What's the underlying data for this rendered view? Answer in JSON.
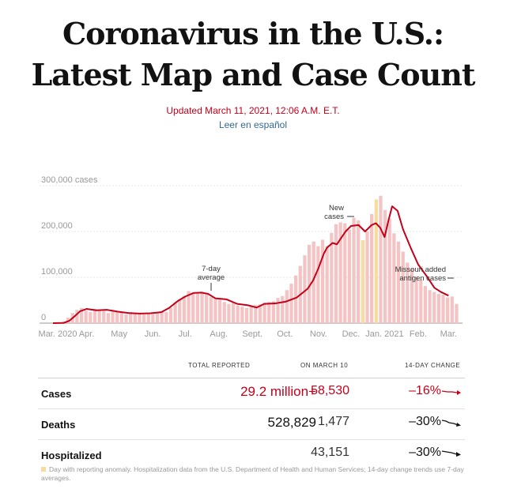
{
  "header": {
    "title_line1": "Coronavirus in the U.S.:",
    "title_line2": "Latest Map and Case Count",
    "updated": "Updated March 11, 2021, 12:06 A.M. E.T.",
    "spanish_link": "Leer en español"
  },
  "colors": {
    "accent": "#c4001a",
    "bar": "#f2b9b9",
    "anomaly": "#f7dca0",
    "link": "#326891"
  },
  "chart_data": {
    "type": "bar",
    "ylabel": "cases",
    "y_ticks": [
      "300,000 cases",
      "200,000",
      "100,000",
      "0"
    ],
    "y_tick_values": [
      300000,
      200000,
      100000,
      0
    ],
    "ylim": [
      0,
      300000
    ],
    "x_tick_labels": [
      "Mar. 2020",
      "Apr.",
      "May",
      "Jun.",
      "Jul.",
      "Aug.",
      "Sept.",
      "Oct.",
      "Nov.",
      "Dec.",
      "Jan. 2021",
      "Feb.",
      "Mar."
    ],
    "x_tick_days": [
      0,
      31,
      61,
      92,
      122,
      153,
      184,
      214,
      245,
      275,
      306,
      337,
      365
    ],
    "grid": true,
    "series": [
      {
        "name": "7-day average",
        "days": [
          0,
          10,
          15,
          20,
          25,
          31,
          40,
          50,
          60,
          70,
          80,
          90,
          100,
          107,
          115,
          122,
          130,
          137,
          143,
          150,
          160,
          170,
          180,
          188,
          195,
          205,
          215,
          225,
          235,
          240,
          245,
          250,
          253,
          258,
          262,
          266,
          270,
          275,
          282,
          288,
          294,
          298,
          302,
          306,
          310,
          313,
          318,
          323,
          330,
          337,
          345,
          352,
          358,
          365
        ],
        "values": [
          0,
          500,
          5000,
          15000,
          26000,
          31000,
          28000,
          29000,
          25000,
          22000,
          21000,
          21500,
          24000,
          33000,
          48000,
          58000,
          66000,
          66500,
          64000,
          54000,
          52000,
          42000,
          39000,
          34000,
          42000,
          43000,
          47000,
          56000,
          75000,
          93000,
          120000,
          152000,
          165000,
          175000,
          172000,
          186000,
          200000,
          212000,
          214000,
          200000,
          214000,
          218000,
          208000,
          188000,
          228000,
          255000,
          245000,
          205000,
          165000,
          128000,
          102000,
          77000,
          68000,
          60000
        ]
      },
      {
        "name": "New cases",
        "bars": [
          0,
          1000,
          4000,
          12000,
          22000,
          29000,
          33000,
          27000,
          24000,
          31000,
          30000,
          27000,
          22000,
          29000,
          26000,
          23000,
          19000,
          24000,
          21000,
          20000,
          19000,
          22000,
          20000,
          22000,
          26000,
          24000,
          34000,
          45000,
          52000,
          59000,
          70000,
          66000,
          66000,
          69000,
          63000,
          57000,
          55000,
          51000,
          46000,
          42000,
          44000,
          38000,
          36000,
          33000,
          36000,
          40000,
          41000,
          45000,
          46000,
          48000,
          55000,
          59000,
          72000,
          86000,
          104000,
          125000,
          148000,
          171000,
          178000,
          168000,
          182000,
          168000,
          197000,
          216000,
          220000,
          218000,
          204000,
          230000,
          224000,
          181000,
          200000,
          238000,
          270000,
          278000,
          247000,
          228000,
          196000,
          178000,
          156000,
          132000,
          119000,
          101000,
          95000,
          81000,
          72000,
          68000,
          64000,
          62000,
          56000,
          58000,
          42000
        ]
      }
    ],
    "annotations": [
      {
        "text_lines": [
          "7-day",
          "average"
        ]
      },
      {
        "text_lines": [
          "New",
          "cases"
        ]
      },
      {
        "text_lines": [
          "Missouri added",
          "antigen cases"
        ]
      }
    ]
  },
  "stats": {
    "headers": [
      "TOTAL REPORTED",
      "ON MARCH 10",
      "14-DAY CHANGE"
    ],
    "rows": [
      {
        "name": "Cases",
        "total": "29.2 million+",
        "day": "58,530",
        "change": "–16%"
      },
      {
        "name": "Deaths",
        "total": "528,829",
        "day": "1,477",
        "change": "–30%"
      },
      {
        "name": "Hospitalized",
        "total": "",
        "day": "43,151",
        "change": "–30%"
      }
    ]
  },
  "footnote": "Day with reporting anomaly. Hospitalization data from the U.S. Department of Health and Human Services; 14-day change trends use 7-day averages."
}
